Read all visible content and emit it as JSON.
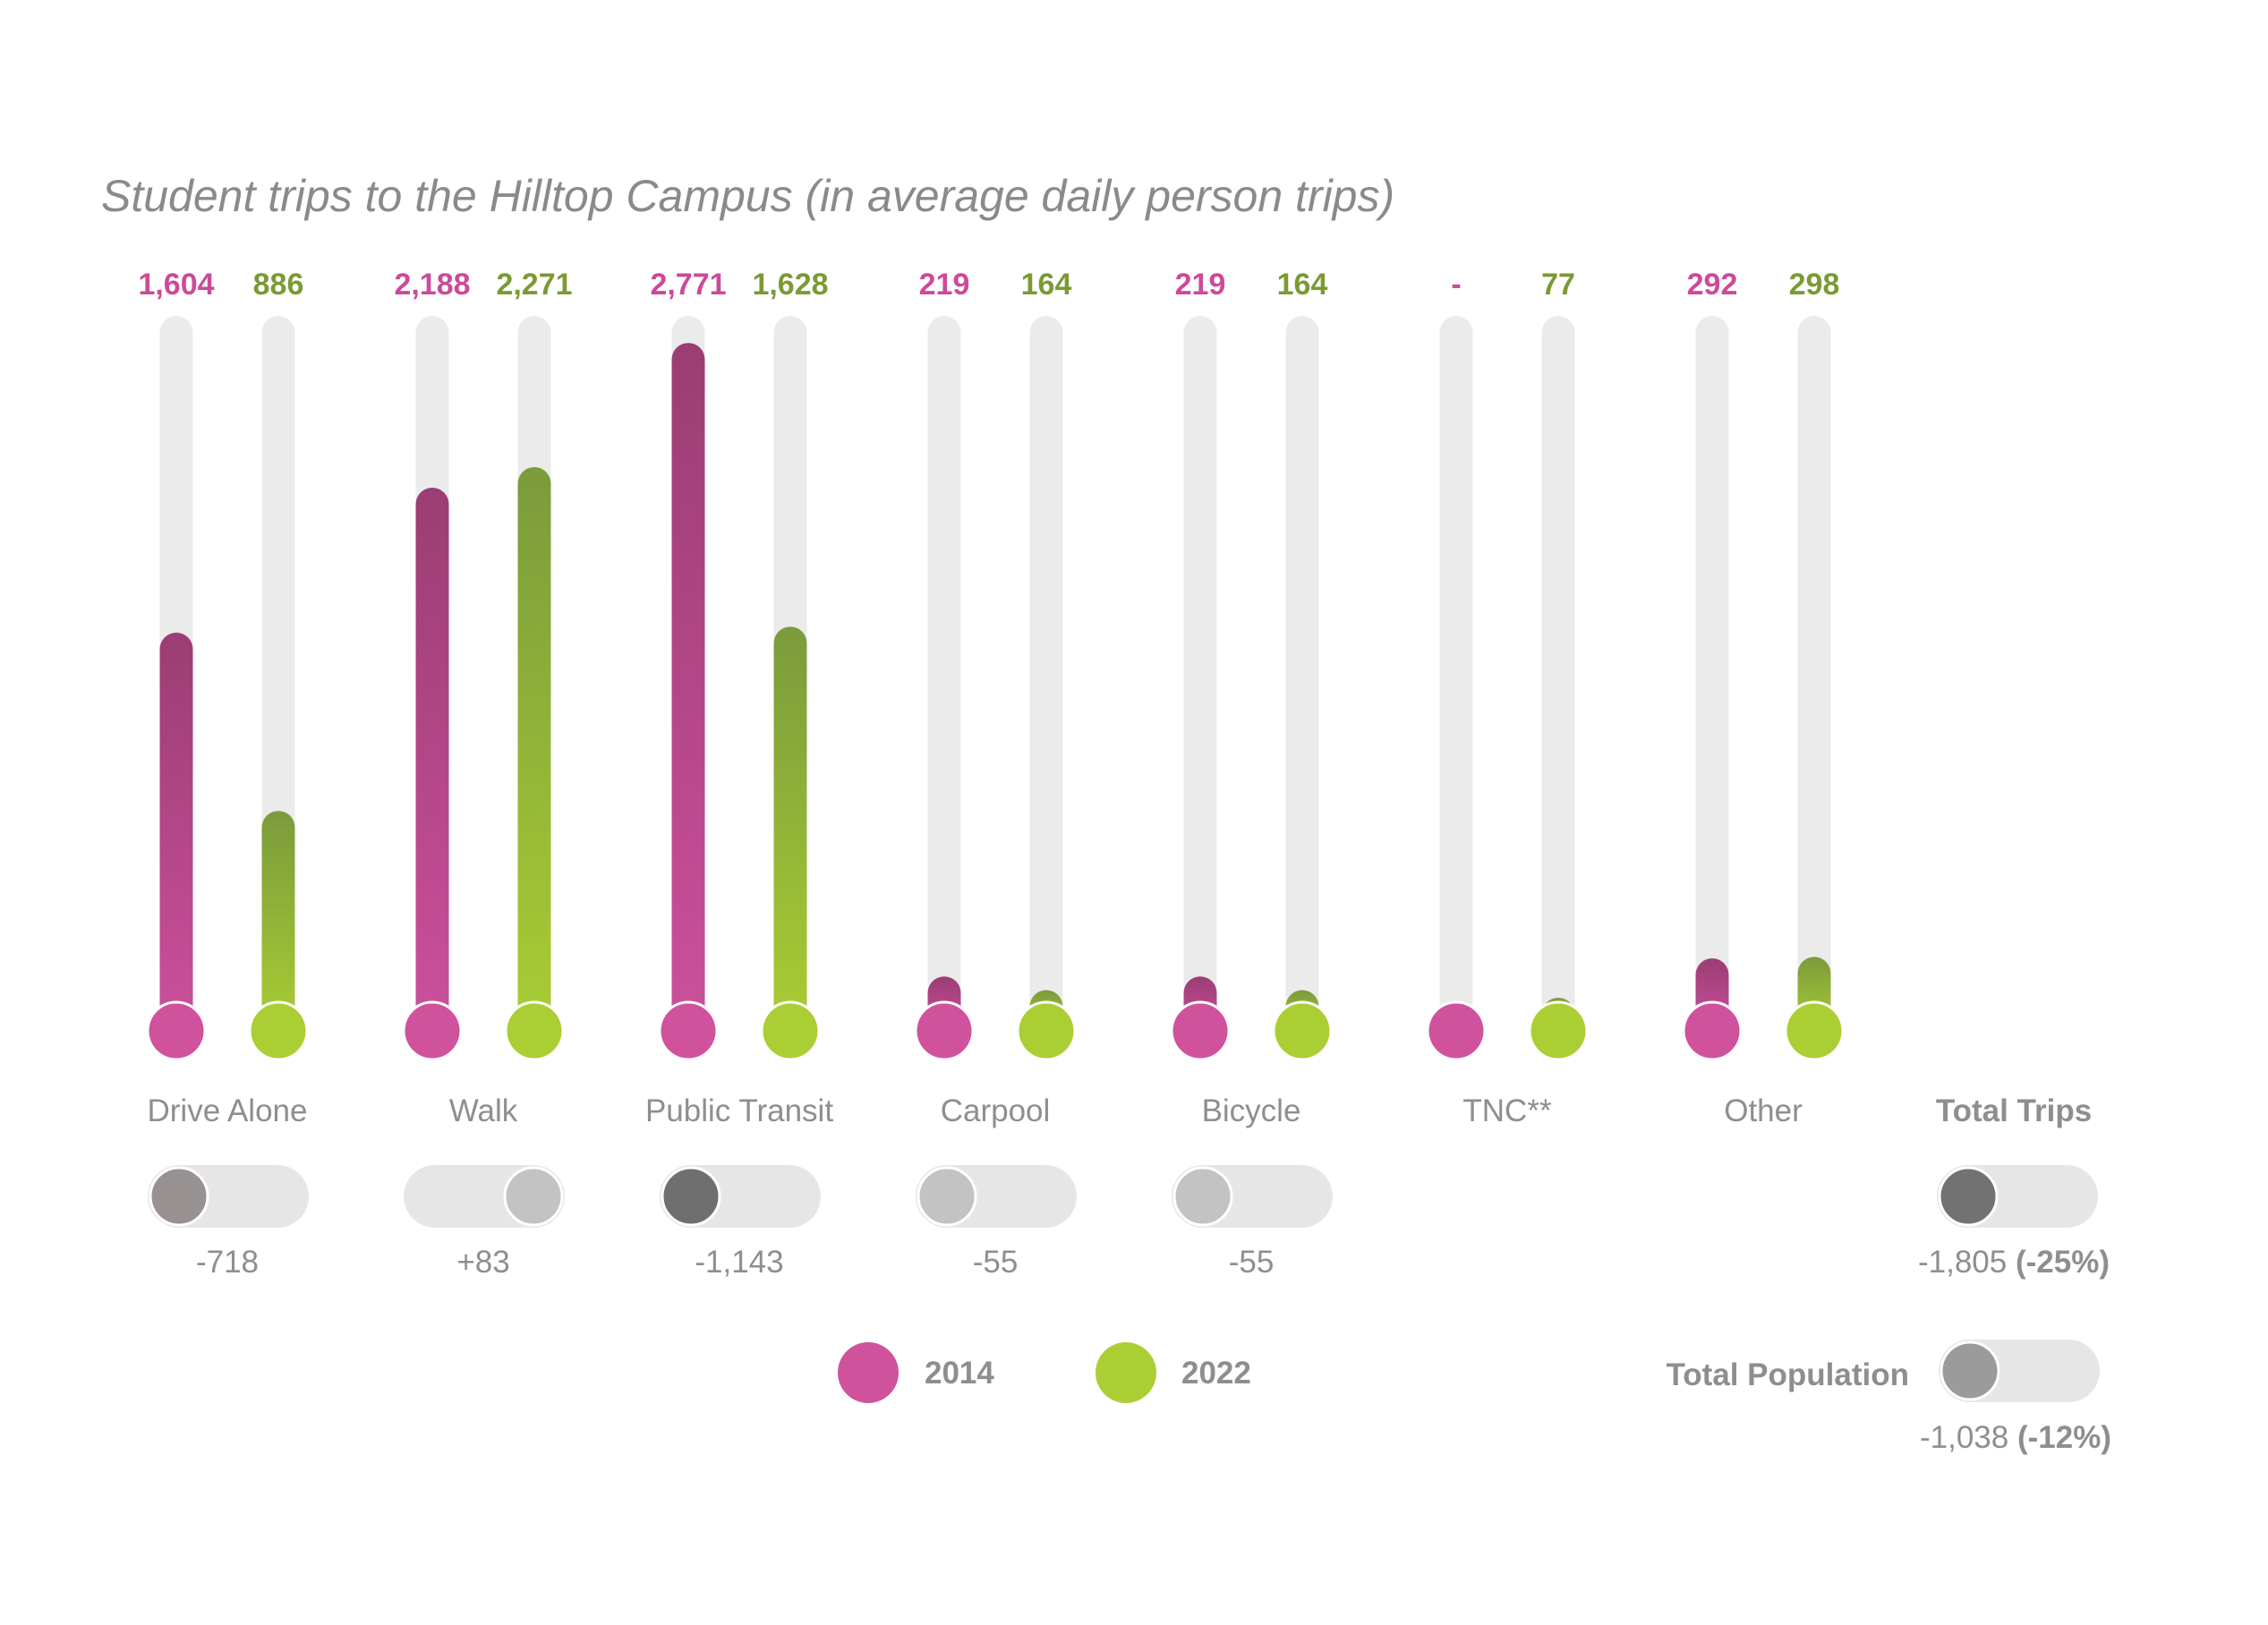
{
  "chart_data": {
    "type": "bar",
    "title": "Student trips to the Hilltop Campus (in average daily person trips)",
    "categories": [
      "Drive Alone",
      "Walk",
      "Public Transit",
      "Carpool",
      "Bicycle",
      "TNC**",
      "Other"
    ],
    "series": [
      {
        "name": "2014",
        "values": [
          1604,
          2188,
          2771,
          219,
          219,
          0,
          292
        ],
        "labels": [
          "1,604",
          "2,188",
          "2,771",
          "219",
          "219",
          "-",
          "292"
        ]
      },
      {
        "name": "2022",
        "values": [
          886,
          2271,
          1628,
          164,
          164,
          77,
          298
        ],
        "labels": [
          "886",
          "2,271",
          "1,628",
          "164",
          "164",
          "77",
          "298"
        ]
      }
    ],
    "ylim": [
      0,
      2880
    ],
    "changes": [
      {
        "text": "-718",
        "knob_position": 0,
        "knob_color": "#989191"
      },
      {
        "text": "+83",
        "knob_position": 1,
        "knob_color": "#c3c3c3"
      },
      {
        "text": "-1,143",
        "knob_position": 0,
        "knob_color": "#6f6f6f"
      },
      {
        "text": "-55",
        "knob_position": 0,
        "knob_color": "#c3c3c3"
      },
      {
        "text": "-55",
        "knob_position": 0,
        "knob_color": "#c3c3c3"
      },
      null,
      null
    ],
    "totals": [
      {
        "title": "Total Trips",
        "change": "-1,805",
        "percent": "(-25%)",
        "knob_position": 0,
        "knob_color": "#727272"
      },
      {
        "title": "Total Population",
        "change": "-1,038",
        "percent": "(-12%)",
        "knob_position": 0,
        "knob_color": "#9b9b9b"
      }
    ],
    "legend": [
      {
        "label": "2014",
        "color": "#d0529d"
      },
      {
        "label": "2022",
        "color": "#acce35"
      }
    ],
    "colors": {
      "series_2014_top": "#9b3d74",
      "series_2014_bottom": "#cb509c",
      "series_2014_label": "#cc4a9a",
      "series_2014_dot": "#d0529d",
      "series_2022_top": "#7b9b3c",
      "series_2022_bottom": "#a9cd33",
      "series_2022_label": "#7a9a34",
      "series_2022_dot": "#acce35",
      "track": "#ebebeb",
      "toggle_track": "#e6e6e6"
    }
  }
}
